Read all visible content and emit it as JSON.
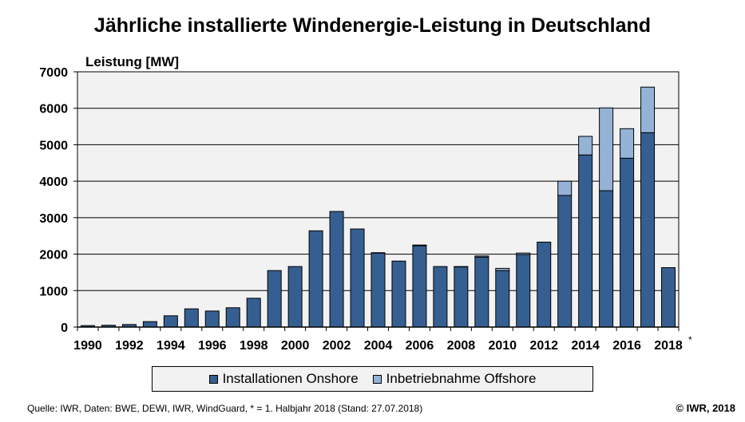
{
  "chart_data": {
    "type": "bar",
    "stacked": true,
    "title": "Jährliche installierte Windenergie-Leistung in Deutschland",
    "ylabel": "Leistung [MW]",
    "xlabel": "",
    "ylim": [
      0,
      7000
    ],
    "yticks": [
      0,
      1000,
      2000,
      3000,
      4000,
      5000,
      6000,
      7000
    ],
    "grid": true,
    "legend_position": "bottom",
    "categories": [
      1990,
      1991,
      1992,
      1993,
      1994,
      1995,
      1996,
      1997,
      1998,
      1999,
      2000,
      2001,
      2002,
      2003,
      2004,
      2005,
      2006,
      2007,
      2008,
      2009,
      2010,
      2011,
      2012,
      2013,
      2014,
      2015,
      2016,
      2017,
      2018
    ],
    "xtick_labels": [
      "1990",
      "1992",
      "1994",
      "1996",
      "1998",
      "2000",
      "2002",
      "2004",
      "2006",
      "2008",
      "2010",
      "2012",
      "2014",
      "2016",
      "2018"
    ],
    "xtick_note": "*",
    "series": [
      {
        "name": "Installationen Onshore",
        "color": "#365f91",
        "values": [
          40,
          50,
          70,
          150,
          310,
          500,
          440,
          530,
          790,
          1550,
          1660,
          2640,
          3170,
          2690,
          2030,
          1810,
          2230,
          1660,
          1650,
          1920,
          1550,
          1990,
          2330,
          3610,
          4720,
          3740,
          4630,
          5330,
          1630
        ]
      },
      {
        "name": "Inbetriebnahme Offshore",
        "color": "#95b3d7",
        "values": [
          0,
          0,
          0,
          0,
          0,
          0,
          0,
          0,
          0,
          0,
          0,
          0,
          0,
          0,
          10,
          0,
          20,
          0,
          10,
          30,
          60,
          40,
          0,
          390,
          510,
          2270,
          810,
          1250,
          0
        ]
      }
    ]
  },
  "footer": {
    "source": "Quelle: IWR, Daten: BWE, DEWI, IWR, WindGuard, * = 1. Halbjahr 2018 (Stand: 27.07.2018)",
    "copyright": "© IWR, 2018"
  }
}
